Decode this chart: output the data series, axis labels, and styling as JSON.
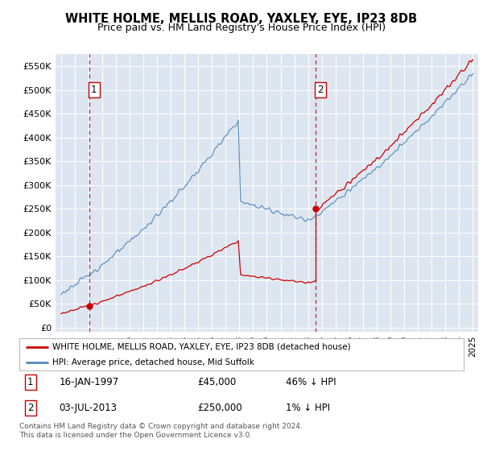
{
  "title1": "WHITE HOLME, MELLIS ROAD, YAXLEY, EYE, IP23 8DB",
  "title2": "Price paid vs. HM Land Registry's House Price Index (HPI)",
  "bg_color": "#dde6f0",
  "sale1_date": 1997.04,
  "sale1_price": 45000,
  "sale2_date": 2013.54,
  "sale2_price": 250000,
  "legend_line1": "WHITE HOLME, MELLIS ROAD, YAXLEY, EYE, IP23 8DB (detached house)",
  "legend_line2": "HPI: Average price, detached house, Mid Suffolk",
  "footer": "Contains HM Land Registry data © Crown copyright and database right 2024.\nThis data is licensed under the Open Government Licence v3.0.",
  "hpi_color": "#5588bb",
  "sale_color": "#cc0000",
  "vline_color": "#cc0000",
  "yticks": [
    0,
    50000,
    100000,
    150000,
    200000,
    250000,
    300000,
    350000,
    400000,
    450000,
    500000,
    550000
  ],
  "ytick_labels": [
    "£0",
    "£50K",
    "£100K",
    "£150K",
    "£200K",
    "£250K",
    "£300K",
    "£350K",
    "£400K",
    "£450K",
    "£500K",
    "£550K"
  ],
  "xmin": 1994.6,
  "xmax": 2025.4,
  "ylim_min": -8000,
  "ylim_max": 575000
}
